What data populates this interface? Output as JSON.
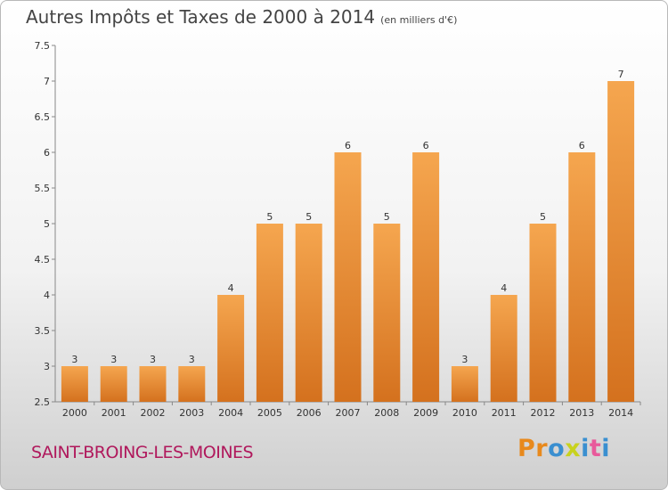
{
  "header": {
    "title": "Autres Impôts et Taxes de 2000 à 2014",
    "unit": "(en milliers d'€)"
  },
  "footer": {
    "place": "SAINT-BROING-LES-MOINES",
    "logo_letters": [
      "P",
      "r",
      "o",
      "x",
      "i",
      "t",
      "i"
    ],
    "logo_colors": [
      "#e8891c",
      "#e8891c",
      "#3a8fd0",
      "#c8d21e",
      "#3a8fd0",
      "#e85a9b",
      "#3a8fd0"
    ]
  },
  "chart_data": {
    "type": "bar",
    "title": "Autres Impôts et Taxes de 2000 à 2014",
    "categories": [
      "2000",
      "2001",
      "2002",
      "2003",
      "2004",
      "2005",
      "2006",
      "2007",
      "2008",
      "2009",
      "2010",
      "2011",
      "2012",
      "2013",
      "2014"
    ],
    "values": [
      3,
      3,
      3,
      3,
      4,
      5,
      5,
      6,
      5,
      6,
      3,
      4,
      5,
      6,
      7
    ],
    "data_labels": [
      "3",
      "3",
      "3",
      "3",
      "4",
      "5",
      "5",
      "6",
      "5",
      "6",
      "3",
      "4",
      "5",
      "6",
      "7"
    ],
    "ylim": [
      2.5,
      7.5
    ],
    "yticks": [
      2.5,
      3,
      3.5,
      4,
      4.5,
      5,
      5.5,
      6,
      6.5,
      7,
      7.5
    ],
    "ytick_labels": [
      "2.5",
      "3",
      "3.5",
      "4",
      "4.5",
      "5",
      "5.5",
      "6",
      "6.5",
      "7",
      "7.5"
    ],
    "xlabel": "",
    "ylabel": "",
    "grid": false,
    "colors": {
      "bar_top": "#f5a64f",
      "bar_bottom": "#d4711e",
      "axis": "#888888"
    }
  }
}
